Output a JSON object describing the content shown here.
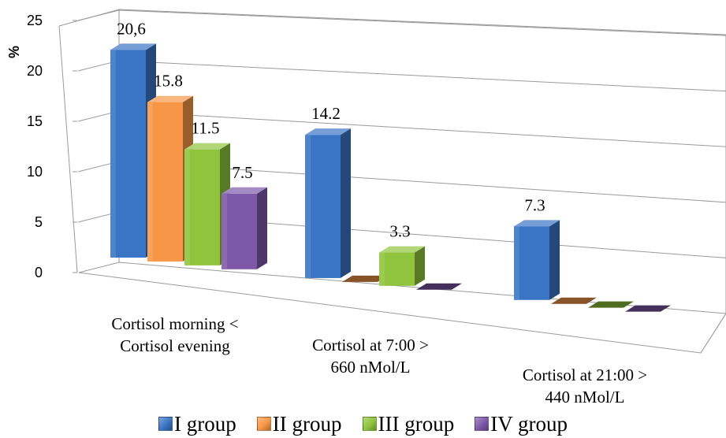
{
  "chart_data": {
    "type": "bar",
    "style": "3d-clustered-column",
    "ylabel": "%",
    "ylim": [
      0,
      25
    ],
    "yticks": [
      "0",
      "5",
      "10",
      "15",
      "20",
      "25"
    ],
    "grid": true,
    "legend_position": "bottom",
    "categories": [
      [
        "Cortisol morning <",
        "Cortisol evening"
      ],
      [
        "Cortisol at 7:00 >",
        "660 nMol/L"
      ],
      [
        "Cortisol at 21:00 >",
        "440 nMol/L"
      ]
    ],
    "series": [
      {
        "name": "I group",
        "values": [
          20.6,
          14.2,
          7.3
        ],
        "labels": [
          "20,6",
          "14.2",
          "7.3"
        ],
        "color": "#3a74c4"
      },
      {
        "name": "II group",
        "values": [
          15.8,
          0,
          0
        ],
        "labels": [
          "15.8",
          "",
          ""
        ],
        "color": "#f79646"
      },
      {
        "name": "III group",
        "values": [
          11.5,
          3.3,
          0
        ],
        "labels": [
          "11.5",
          "3.3",
          ""
        ],
        "color": "#8fc43c"
      },
      {
        "name": "IV group",
        "values": [
          7.5,
          0,
          0
        ],
        "labels": [
          "7.5",
          "",
          ""
        ],
        "color": "#7d58a8"
      }
    ]
  }
}
